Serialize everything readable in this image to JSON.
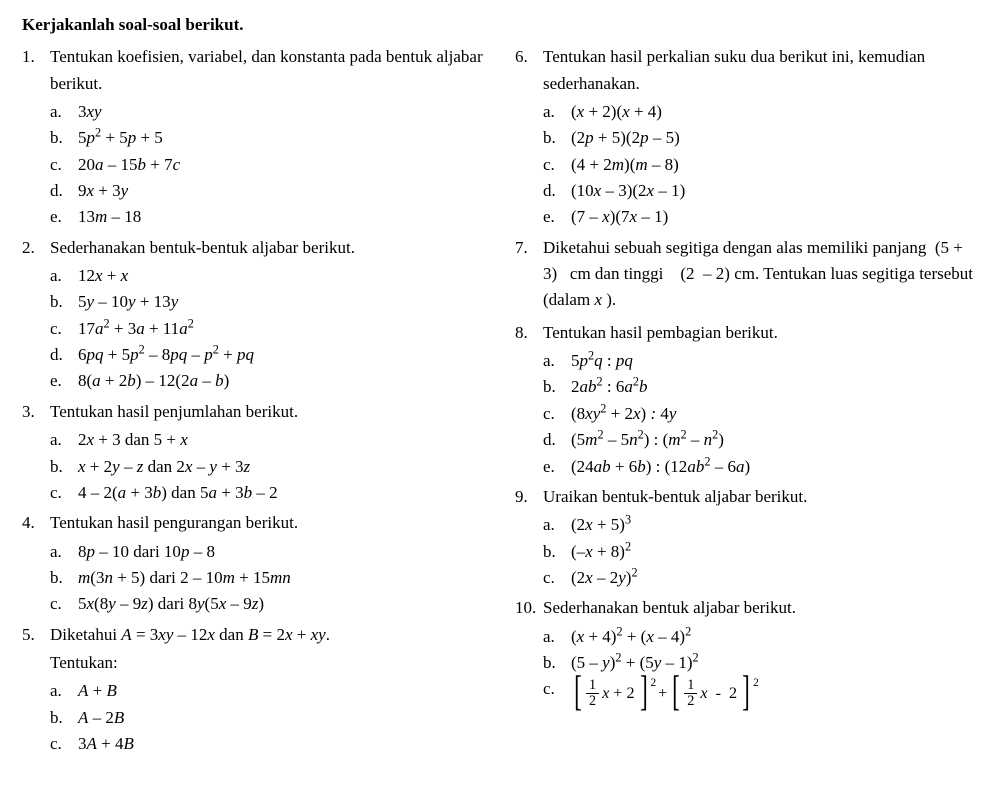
{
  "title": "Kerjakanlah soal-soal berikut.",
  "left": {
    "p1": {
      "num": "1.",
      "stem": "Tentukan koefisien, variabel, dan konstanta pada bentuk aljabar berikut.",
      "a": "a.",
      "a_txt": "3<i>xy</i>",
      "b": "b.",
      "b_txt": "5<i>p</i><sup>2</sup> + 5<i>p</i> + 5",
      "c": "c.",
      "c_txt": "20<i>a</i> &ndash; 15<i>b</i> + 7<i>c</i>",
      "d": "d.",
      "d_txt": "9<i>x</i> + 3<i>y</i>",
      "e": "e.",
      "e_txt": "13<i>m</i> &ndash; 18"
    },
    "p2": {
      "num": "2.",
      "stem": "Sederhanakan bentuk-bentuk aljabar berikut.",
      "a": "a.",
      "a_txt": "12<i>x</i> + <i>x</i>",
      "b": "b.",
      "b_txt": "5<i>y</i> &ndash; 10<i>y</i> + 13<i>y</i>",
      "c": "c.",
      "c_txt": "17<i>a</i><sup>2</sup> + 3<i>a</i> + 11<i>a</i><sup>2</sup>",
      "d": "d.",
      "d_txt": "6<i>pq</i> + 5<i>p</i><sup>2</sup> &ndash; 8<i>pq</i> &ndash; <i>p</i><sup>2</sup> + <i>pq</i>",
      "e": "e.",
      "e_txt": "8(<i>a</i> + 2<i>b</i>) &ndash; 12(2<i>a</i> &ndash; <i>b</i>)"
    },
    "p3": {
      "num": "3.",
      "stem": "Tentukan hasil penjumlahan berikut.",
      "a": "a.",
      "a_txt": "2<i>x</i> + 3 dan 5 + <i>x</i>",
      "b": "b.",
      "b_txt": "<i>x</i> + 2<i>y</i> &ndash; <i>z</i> dan 2<i>x</i> &ndash; <i>y</i> + 3<i>z</i>",
      "c": "c.",
      "c_txt": "4 &ndash; 2(<i>a</i> + 3<i>b</i>) dan 5<i>a</i> + 3<i>b</i> &ndash; 2"
    },
    "p4": {
      "num": "4.",
      "stem": "Tentukan hasil pengurangan berikut.",
      "a": "a.",
      "a_txt": "8<i>p</i> &ndash; 10 dari 10<i>p</i> &ndash; 8",
      "b": "b.",
      "b_txt": "<i>m</i>(3<i>n</i> + 5) dari 2 &ndash; 10<i>m</i> + 15<i>mn</i>",
      "c": "c.",
      "c_txt": "5<i>x</i>(8<i>y</i> &ndash; 9<i>z</i>) dari 8<i>y</i>(5<i>x</i> &ndash; 9<i>z</i>)"
    },
    "p5": {
      "num": "5.",
      "stem": "Diketahui <i>A</i> = 3<i>xy</i> &ndash; 12<i>x</i> dan <i>B</i> = 2<i>x</i> + <i>xy</i>.",
      "stem2": "Tentukan:",
      "a": "a.",
      "a_txt": "<i>A</i> + <i>B</i>",
      "b": "b.",
      "b_txt": "<i>A</i> &ndash; 2<i>B</i>",
      "c": "c.",
      "c_txt": "3<i>A</i> + 4<i>B</i>"
    }
  },
  "right": {
    "p6": {
      "num": "6.",
      "stem": "Tentukan hasil perkalian suku dua berikut ini, kemudian sederhanakan.",
      "a": "a.",
      "a_txt": "(<i>x</i> + 2)(<i>x</i> + 4)",
      "b": "b.",
      "b_txt": "(2<i>p</i> + 5)(2<i>p</i> &ndash; 5)",
      "c": "c.",
      "c_txt": "(4 + 2<i>m</i>)(<i>m</i> &ndash; 8)",
      "d": "d.",
      "d_txt": "(10<i>x</i> &ndash; 3)(2<i>x</i> &ndash; 1)",
      "e": "e.",
      "e_txt": "(7 &ndash; <i>x</i>)(7<i>x</i> &ndash; 1)"
    },
    "p7": {
      "num": "7.",
      "stem": "Diketahui sebuah segitiga dengan alas memiliki panjang &nbsp;(5 + 3)&nbsp;&nbsp; cm dan tinggi &nbsp;&nbsp;&nbsp;(2 &nbsp;&ndash; 2) cm. Tentukan luas segitiga tersebut (dalam <i>x</i> )."
    },
    "p8": {
      "num": "8.",
      "stem": "Tentukan hasil pembagian berikut.",
      "a": "a.",
      "a_txt": "5<i>p</i><sup>2</sup><i>q</i> : <i>pq</i>",
      "b": "b.",
      "b_txt": "2<i>ab</i><sup>2</sup> : 6<i>a</i><sup>2</sup><i>b</i>",
      "c": "c.",
      "c_txt": "(8<i>xy</i><sup>2</sup> + 2<i>x</i>) <i>:</i> 4<i>y</i>",
      "d": "d.",
      "d_txt": "(5<i>m</i><sup>2</sup> &ndash; 5<i>n</i><sup>2</sup>) : (<i>m</i><sup>2</sup> &ndash; <i>n</i><sup>2</sup>)",
      "e": "e.",
      "e_txt": "(24<i>ab</i> + 6<i>b</i>) : (12<i>ab</i><sup>2</sup> &ndash; 6<i>a</i>)"
    },
    "p9": {
      "num": "9.",
      "stem": "Uraikan bentuk-bentuk aljabar berikut.",
      "a": "a.",
      "a_txt": "(2<i>x</i> + 5)<sup>3</sup>",
      "b": "b.",
      "b_txt": "(&ndash;<i>x</i> + 8)<sup>2</sup>",
      "c": "c.",
      "c_txt": "(2<i>x</i> &ndash; 2<i>y</i>)<sup>2</sup>"
    },
    "p10": {
      "num": "10.",
      "stem": "Sederhanakan bentuk aljabar berikut.",
      "a": "a.",
      "a_txt": "(<i>x</i> + 4)<sup>2</sup> + (<i>x</i> &ndash; 4)<sup>2</sup>",
      "b": "b.",
      "b_txt": "(5 &ndash; <i>y</i>)<sup>2</sup> + (5<i>y</i> &ndash; 1)<sup>2</sup>",
      "c": "c.",
      "c_frac_num1": "1",
      "c_frac_den1": "2",
      "c_mid1": "<i>x</i> + 2",
      "c_plus": "+",
      "c_frac_num2": "1",
      "c_frac_den2": "2",
      "c_mid2": "<i>x</i> &nbsp;-&nbsp; 2",
      "c_exp": "2"
    }
  }
}
